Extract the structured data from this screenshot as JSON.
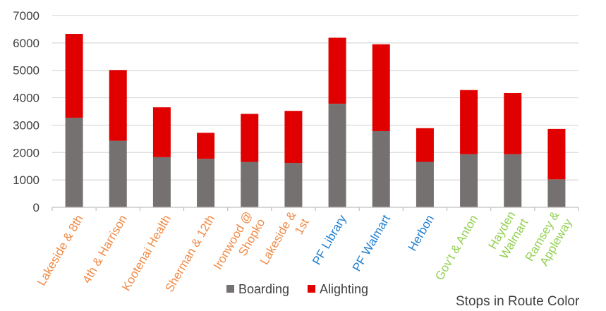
{
  "chart_data": {
    "type": "bar",
    "stacked": true,
    "categories": [
      {
        "lines": [
          "Lakeside & 8th"
        ],
        "route_color": "#f08a46"
      },
      {
        "lines": [
          "4th & Harrison"
        ],
        "route_color": "#f08a46"
      },
      {
        "lines": [
          "Kootenai Health"
        ],
        "route_color": "#f08a46"
      },
      {
        "lines": [
          "Sherman & 12th"
        ],
        "route_color": "#f08a46"
      },
      {
        "lines": [
          "Ironwood @",
          "Shopko"
        ],
        "route_color": "#f08a46"
      },
      {
        "lines": [
          "Lakeside &",
          "1st"
        ],
        "route_color": "#f08a46"
      },
      {
        "lines": [
          "PF Library"
        ],
        "route_color": "#1f7fd0"
      },
      {
        "lines": [
          "PF Walmart"
        ],
        "route_color": "#1f7fd0"
      },
      {
        "lines": [
          "Herbon"
        ],
        "route_color": "#1f7fd0"
      },
      {
        "lines": [
          "Gov't & Anton"
        ],
        "route_color": "#92d050"
      },
      {
        "lines": [
          "Hayden",
          "Walmart"
        ],
        "route_color": "#92d050"
      },
      {
        "lines": [
          "Ramsey &",
          "Appleway"
        ],
        "route_color": "#92d050"
      }
    ],
    "series": [
      {
        "name": "Boarding",
        "color": "#767171",
        "values": [
          3270,
          2430,
          1830,
          1770,
          1660,
          1620,
          3780,
          2780,
          1660,
          1940,
          1940,
          1020
        ]
      },
      {
        "name": "Alighting",
        "color": "#e00000",
        "values": [
          3060,
          2580,
          1820,
          950,
          1750,
          1900,
          2410,
          3170,
          1230,
          2340,
          2230,
          1840
        ]
      }
    ],
    "ylim": [
      0,
      7000
    ],
    "yticks": [
      "0",
      "1000",
      "2000",
      "3000",
      "4000",
      "5000",
      "6000",
      "7000"
    ],
    "grid": true,
    "legend_position": "bottom",
    "note": "Stops in Route Color"
  }
}
